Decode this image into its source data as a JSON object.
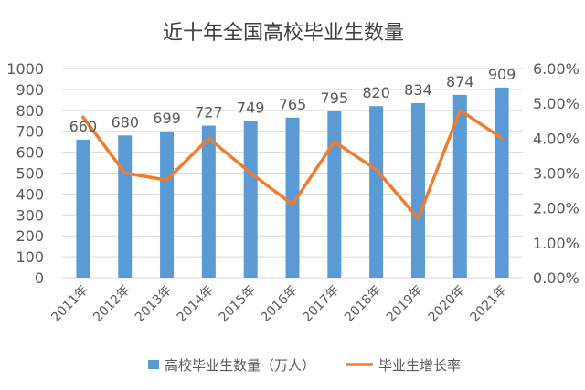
{
  "chart_data": {
    "type": "bar",
    "title": "近十年全国高校毕业生数量",
    "categories": [
      "2011年",
      "2012年",
      "2013年",
      "2014年",
      "2015年",
      "2016年",
      "2017年",
      "2018年",
      "2019年",
      "2020年",
      "2021年"
    ],
    "series": [
      {
        "name": "高校毕业生数量（万人）",
        "type": "bar",
        "axis": "left",
        "values": [
          660,
          680,
          699,
          727,
          749,
          765,
          795,
          820,
          834,
          874,
          909
        ],
        "data_labels": [
          "660",
          "680",
          "699",
          "727",
          "749",
          "765",
          "795",
          "820",
          "834",
          "874",
          "909"
        ]
      },
      {
        "name": "毕业生增长率",
        "type": "line",
        "axis": "right",
        "values": [
          4.6,
          3.0,
          2.8,
          4.0,
          3.0,
          2.1,
          3.9,
          3.1,
          1.7,
          4.8,
          4.0
        ]
      }
    ],
    "y_left": {
      "ylim": [
        0,
        1000
      ],
      "ticks": [
        "0",
        "100",
        "200",
        "300",
        "400",
        "500",
        "600",
        "700",
        "800",
        "900",
        "1000"
      ]
    },
    "y_right": {
      "ylim": [
        0,
        6
      ],
      "ticks": [
        "0.00%",
        "1.00%",
        "2.00%",
        "3.00%",
        "4.00%",
        "5.00%",
        "6.00%"
      ]
    },
    "colors": {
      "bar": "#5B9BD5",
      "line": "#ED7D31",
      "grid": "#D9D9D9",
      "text": "#595959",
      "title": "#404040"
    },
    "grid": true,
    "legend_position": "bottom"
  }
}
